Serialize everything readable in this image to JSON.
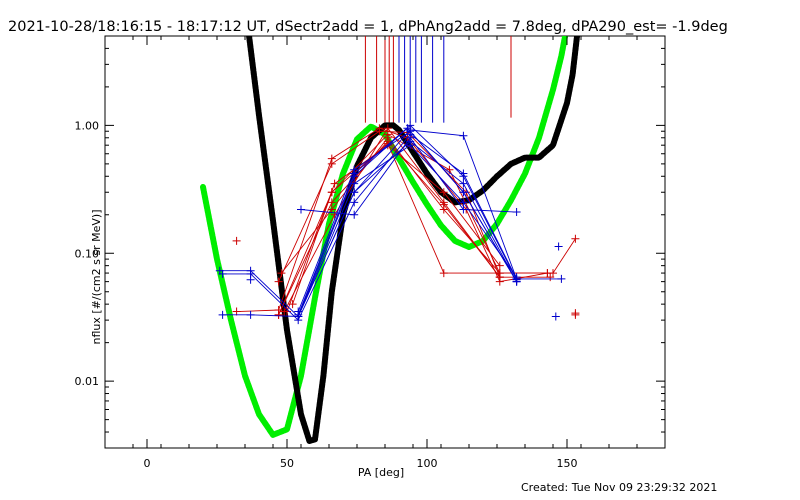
{
  "chart_data": {
    "type": "line",
    "title": "2021-10-28/18:16:15 - 18:17:12 UT, dSectr2add = 1, dPhAng2add = 7.8deg, dPA290_est= -1.9deg",
    "xlabel": "PA [deg]",
    "ylabel": "nflux [#/(cm2 s sr MeV)]",
    "xlim": [
      -15,
      185
    ],
    "ylim": [
      0.003,
      5.0
    ],
    "yscale": "log",
    "grid": false,
    "x_ticks": [
      {
        "value": 0,
        "label": "0"
      },
      {
        "value": 50,
        "label": "50"
      },
      {
        "value": 100,
        "label": "100"
      },
      {
        "value": 150,
        "label": "150"
      }
    ],
    "y_ticks": [
      {
        "value": 0.01,
        "label": "0.01"
      },
      {
        "value": 0.1,
        "label": "0.10"
      },
      {
        "value": 1.0,
        "label": "1.00"
      }
    ],
    "series": [
      {
        "color": "#00ee00",
        "style": "thick-dashed",
        "x": [
          20,
          25,
          30,
          35,
          40,
          45,
          50,
          55,
          60,
          65,
          70,
          75,
          80,
          85,
          90,
          95,
          100,
          105,
          110,
          115,
          120,
          125,
          130,
          135,
          140,
          145,
          148,
          150
        ],
        "y": [
          0.33,
          0.09,
          0.03,
          0.011,
          0.0055,
          0.0038,
          0.0042,
          0.011,
          0.045,
          0.17,
          0.42,
          0.78,
          0.98,
          0.85,
          0.55,
          0.36,
          0.24,
          0.165,
          0.125,
          0.112,
          0.125,
          0.17,
          0.26,
          0.42,
          0.8,
          1.9,
          3.5,
          6.0
        ]
      },
      {
        "color": "#000000",
        "style": "thick-dashed",
        "x": [
          36,
          40,
          45,
          50,
          55,
          58,
          60,
          63,
          66,
          70,
          75,
          80,
          85,
          88,
          90,
          95,
          100,
          105,
          110,
          115,
          120,
          125,
          130,
          135,
          140,
          145,
          150,
          152,
          154
        ],
        "y": [
          6.0,
          1.2,
          0.18,
          0.025,
          0.0055,
          0.0034,
          0.0035,
          0.011,
          0.05,
          0.2,
          0.48,
          0.8,
          1.0,
          1.0,
          0.92,
          0.62,
          0.42,
          0.3,
          0.25,
          0.26,
          0.31,
          0.4,
          0.5,
          0.56,
          0.56,
          0.7,
          1.5,
          2.5,
          6.0
        ]
      },
      {
        "color": "#cc0000",
        "x": [
          32,
          47,
          66,
          83,
          93,
          114,
          126,
          143
        ],
        "y": [
          0.035,
          0.036,
          0.55,
          0.95,
          0.8,
          0.22,
          0.06,
          0.07
        ]
      },
      {
        "color": "#cc0000",
        "x": [
          47,
          66,
          83,
          93,
          114,
          126,
          144
        ],
        "y": [
          0.06,
          0.5,
          0.9,
          0.88,
          0.3,
          0.065,
          0.065
        ]
      },
      {
        "color": "#cc0000",
        "x": [
          47,
          66,
          86,
          108,
          126,
          145,
          153
        ],
        "y": [
          0.033,
          0.3,
          0.85,
          0.45,
          0.07,
          0.07,
          0.13
        ]
      },
      {
        "color": "#cc0000",
        "x": [
          47,
          66,
          86,
          106,
          126
        ],
        "y": [
          0.033,
          0.25,
          0.75,
          0.24,
          0.065
        ]
      },
      {
        "color": "#cc0000",
        "x": [
          48,
          66,
          86,
          106,
          126
        ],
        "y": [
          0.07,
          0.22,
          0.8,
          0.22,
          0.07
        ]
      },
      {
        "color": "#cc0000",
        "x": [
          49,
          67,
          86,
          106,
          126
        ],
        "y": [
          0.035,
          0.2,
          0.95,
          0.25,
          0.065
        ]
      },
      {
        "color": "#cc0000",
        "x": [
          50,
          67,
          86,
          106,
          126
        ],
        "y": [
          0.035,
          0.35,
          0.7,
          0.3,
          0.08
        ]
      },
      {
        "color": "#cc0000",
        "x": [
          52,
          66,
          86,
          106,
          143
        ],
        "y": [
          0.04,
          0.3,
          0.72,
          0.07,
          0.07
        ]
      },
      {
        "color": "#0000cc",
        "x": [
          26,
          37,
          54,
          74,
          94,
          113,
          132,
          148
        ],
        "y": [
          0.073,
          0.073,
          0.032,
          0.3,
          0.92,
          0.83,
          0.063,
          0.063
        ]
      },
      {
        "color": "#0000cc",
        "x": [
          27,
          37,
          54,
          74,
          94,
          113,
          132
        ],
        "y": [
          0.069,
          0.069,
          0.03,
          0.25,
          0.85,
          0.42,
          0.063
        ]
      },
      {
        "color": "#0000cc",
        "x": [
          27,
          37,
          54,
          74,
          93,
          113,
          132
        ],
        "y": [
          0.033,
          0.033,
          0.032,
          0.4,
          0.95,
          0.3,
          0.06
        ]
      },
      {
        "color": "#0000cc",
        "x": [
          55,
          74,
          94,
          113,
          132
        ],
        "y": [
          0.22,
          0.2,
          0.8,
          0.22,
          0.21
        ]
      },
      {
        "color": "#0000cc",
        "x": [
          54,
          74,
          94,
          113,
          132
        ],
        "y": [
          0.032,
          0.3,
          0.75,
          0.35,
          0.06
        ]
      },
      {
        "color": "#0000cc",
        "x": [
          54,
          74,
          94,
          113,
          132
        ],
        "y": [
          0.032,
          0.35,
          0.7,
          0.25,
          0.065
        ]
      },
      {
        "color": "#0000cc",
        "x": [
          54,
          74,
          94,
          113,
          132
        ],
        "y": [
          0.033,
          0.42,
          1.0,
          0.4,
          0.062
        ]
      },
      {
        "color": "#0000cc",
        "x": [
          54,
          74,
          94,
          113,
          132
        ],
        "y": [
          0.035,
          0.45,
          0.9,
          0.3,
          0.06
        ]
      }
    ],
    "markers": [
      {
        "color": "#cc0000",
        "x": 32,
        "y": 0.125
      },
      {
        "color": "#cc0000",
        "x": 153,
        "y": 0.033
      },
      {
        "color": "#cc0000",
        "x": 153,
        "y": 0.034
      },
      {
        "color": "#0000cc",
        "x": 37,
        "y": 0.062
      },
      {
        "color": "#0000cc",
        "x": 147,
        "y": 0.113
      },
      {
        "color": "#0000cc",
        "x": 146,
        "y": 0.032
      }
    ],
    "vertical_lines": [
      {
        "color": "#cc0000",
        "x": 78
      },
      {
        "color": "#cc0000",
        "x": 82
      },
      {
        "color": "#cc0000",
        "x": 85
      },
      {
        "color": "#cc0000",
        "x": 86.5
      },
      {
        "color": "#cc0000",
        "x": 88
      },
      {
        "color": "#cc0000",
        "x": 130
      },
      {
        "color": "#0000cc",
        "x": 90
      },
      {
        "color": "#0000cc",
        "x": 92
      },
      {
        "color": "#0000cc",
        "x": 94
      },
      {
        "color": "#0000cc",
        "x": 96
      },
      {
        "color": "#0000cc",
        "x": 98
      },
      {
        "color": "#0000cc",
        "x": 102
      },
      {
        "color": "#0000cc",
        "x": 106
      }
    ]
  },
  "footer": {
    "created": "Created: Tue Nov 09 23:29:32 2021"
  }
}
